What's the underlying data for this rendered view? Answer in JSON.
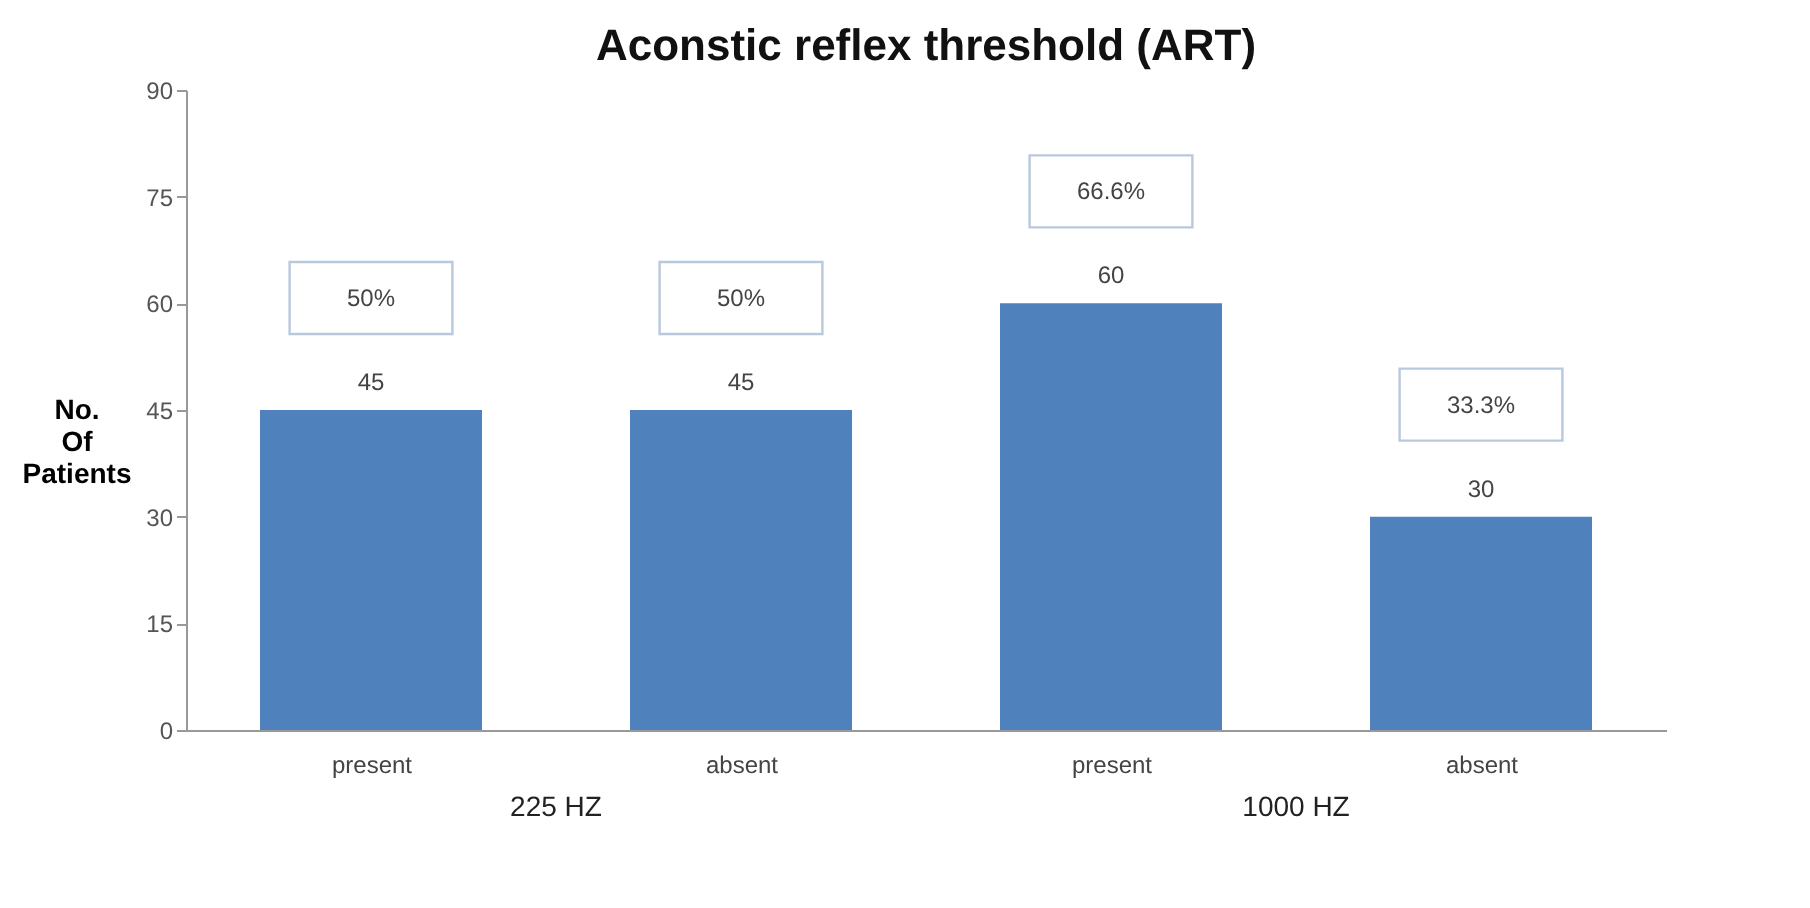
{
  "chart_data": {
    "type": "bar",
    "title": "Aconstic reflex threshold (ART)",
    "ylabel": "No. Of Patients",
    "categories": [
      "present",
      "absent",
      "present",
      "absent"
    ],
    "values": [
      45,
      45,
      60,
      30
    ],
    "color": "#4f81bd",
    "ylim": [
      0,
      90
    ],
    "yticks": [
      0,
      15,
      30,
      45,
      60,
      75,
      90
    ],
    "data_labels": true,
    "grid": false,
    "annotations": [
      "50%",
      "50%",
      "66.6%",
      "33.3%",
      "225 HZ",
      "1000 HZ"
    ]
  }
}
